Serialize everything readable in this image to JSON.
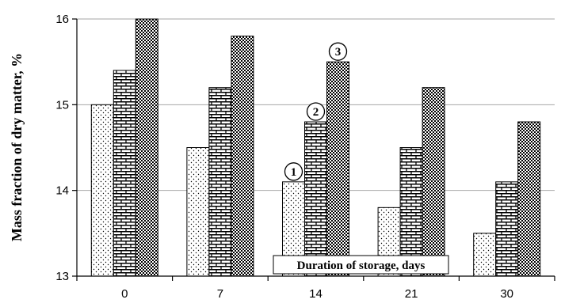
{
  "chart_data": {
    "type": "bar",
    "ylabel": "Mass fraction of dry matter, %",
    "xlabel": "Duration of storage, days",
    "categories": [
      "0",
      "7",
      "14",
      "21",
      "30"
    ],
    "ylim": [
      13,
      16
    ],
    "yticks": [
      "13",
      "14",
      "15",
      "16"
    ],
    "grid": true,
    "series": [
      {
        "marker": "1",
        "pattern": "dots",
        "values": [
          15.0,
          14.5,
          14.1,
          13.8,
          13.5
        ]
      },
      {
        "marker": "2",
        "pattern": "bricks",
        "values": [
          15.4,
          15.2,
          14.8,
          14.5,
          14.1
        ]
      },
      {
        "marker": "3",
        "pattern": "checker",
        "values": [
          16.0,
          15.8,
          15.5,
          15.2,
          14.8
        ]
      }
    ],
    "marker_category_index": 2,
    "colors": {
      "grid": "#a6a6a6",
      "axis": "#000000",
      "bar_fill": "#ffffff",
      "pattern_ink": "#000000"
    }
  }
}
